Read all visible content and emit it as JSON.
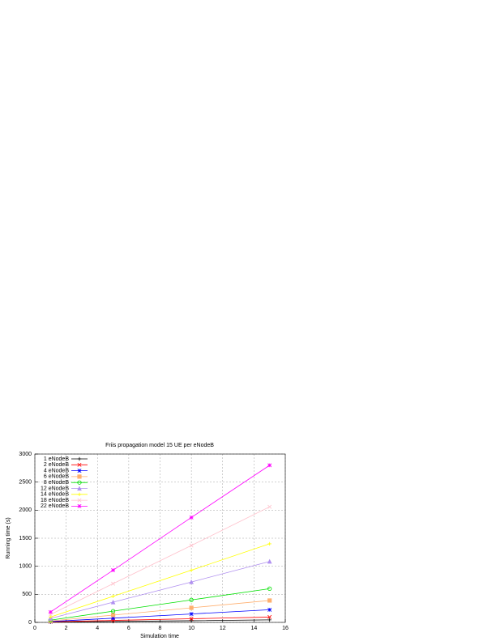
{
  "chart_data": {
    "type": "line",
    "title": "Friis propagation model 15 UE per eNodeB",
    "x_label": "Simulation time",
    "y_label": "Running time (s)",
    "x": [
      1,
      5,
      10,
      15
    ],
    "series": [
      {
        "name": "1 eNodeB",
        "color": "#000000",
        "values": [
          5,
          15,
          30,
          45
        ]
      },
      {
        "name": "2 eNodeB",
        "color": "#ff0000",
        "values": [
          10,
          35,
          65,
          95
        ]
      },
      {
        "name": "4 eNodeB",
        "color": "#0000ff",
        "values": [
          15,
          75,
          150,
          225
        ]
      },
      {
        "name": "6 eNodeB",
        "color": "#ffb070",
        "values": [
          25,
          130,
          260,
          390
        ]
      },
      {
        "name": "8 eNodeB",
        "color": "#00e000",
        "values": [
          40,
          200,
          400,
          600
        ]
      },
      {
        "name": "12 eNodeB",
        "color": "#b090f0",
        "values": [
          70,
          360,
          720,
          1085
        ]
      },
      {
        "name": "14 eNodeB",
        "color": "#ffff00",
        "values": [
          95,
          465,
          930,
          1400
        ]
      },
      {
        "name": "18 eNodeB",
        "color": "#ffc0cb",
        "values": [
          140,
          690,
          1370,
          2060
        ]
      },
      {
        "name": "22 eNodeB",
        "color": "#ff00ff",
        "values": [
          185,
          930,
          1870,
          2800
        ]
      }
    ],
    "xlim": [
      0,
      16
    ],
    "xticks": [
      0,
      2,
      4,
      6,
      8,
      10,
      12,
      14,
      16
    ],
    "ylim": [
      0,
      3000
    ],
    "yticks": [
      0,
      500,
      1000,
      1500,
      2000,
      2500,
      3000
    ],
    "grid": true,
    "legend": "top-left"
  }
}
